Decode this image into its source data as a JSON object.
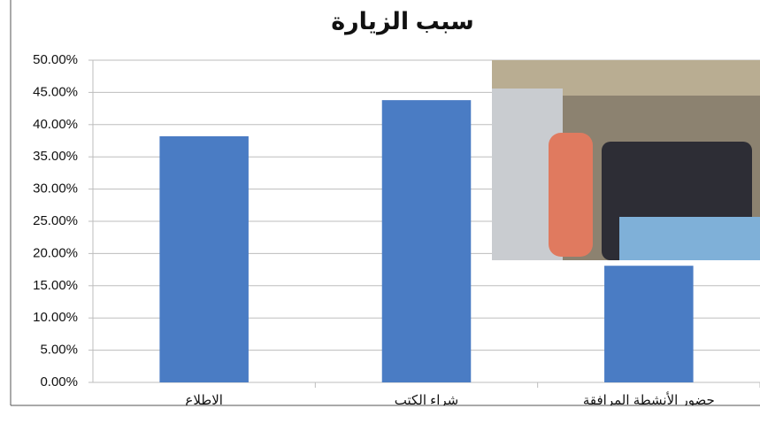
{
  "chart_data": {
    "type": "bar",
    "title": "سبب الزيارة",
    "categories": [
      "الاطلاع",
      "شراء الكتب",
      "حضور الأنشطة المرافقة"
    ],
    "values": [
      38.2,
      43.8,
      18.1
    ],
    "color": "#4a7cc4",
    "ylim": [
      0,
      50
    ],
    "yticks": [
      {
        "value": 0,
        "label": "0.00%"
      },
      {
        "value": 5,
        "label": "5.00%"
      },
      {
        "value": 10,
        "label": "10.00%"
      },
      {
        "value": 15,
        "label": "15.00%"
      },
      {
        "value": 20,
        "label": "20.00%"
      },
      {
        "value": 25,
        "label": "25.00%"
      },
      {
        "value": 30,
        "label": "30.00%"
      },
      {
        "value": 35,
        "label": "35.00%"
      },
      {
        "value": 40,
        "label": "40.00%"
      },
      {
        "value": 45,
        "label": "45.00%"
      },
      {
        "value": 50,
        "label": "50.00%"
      }
    ],
    "grid": true
  }
}
